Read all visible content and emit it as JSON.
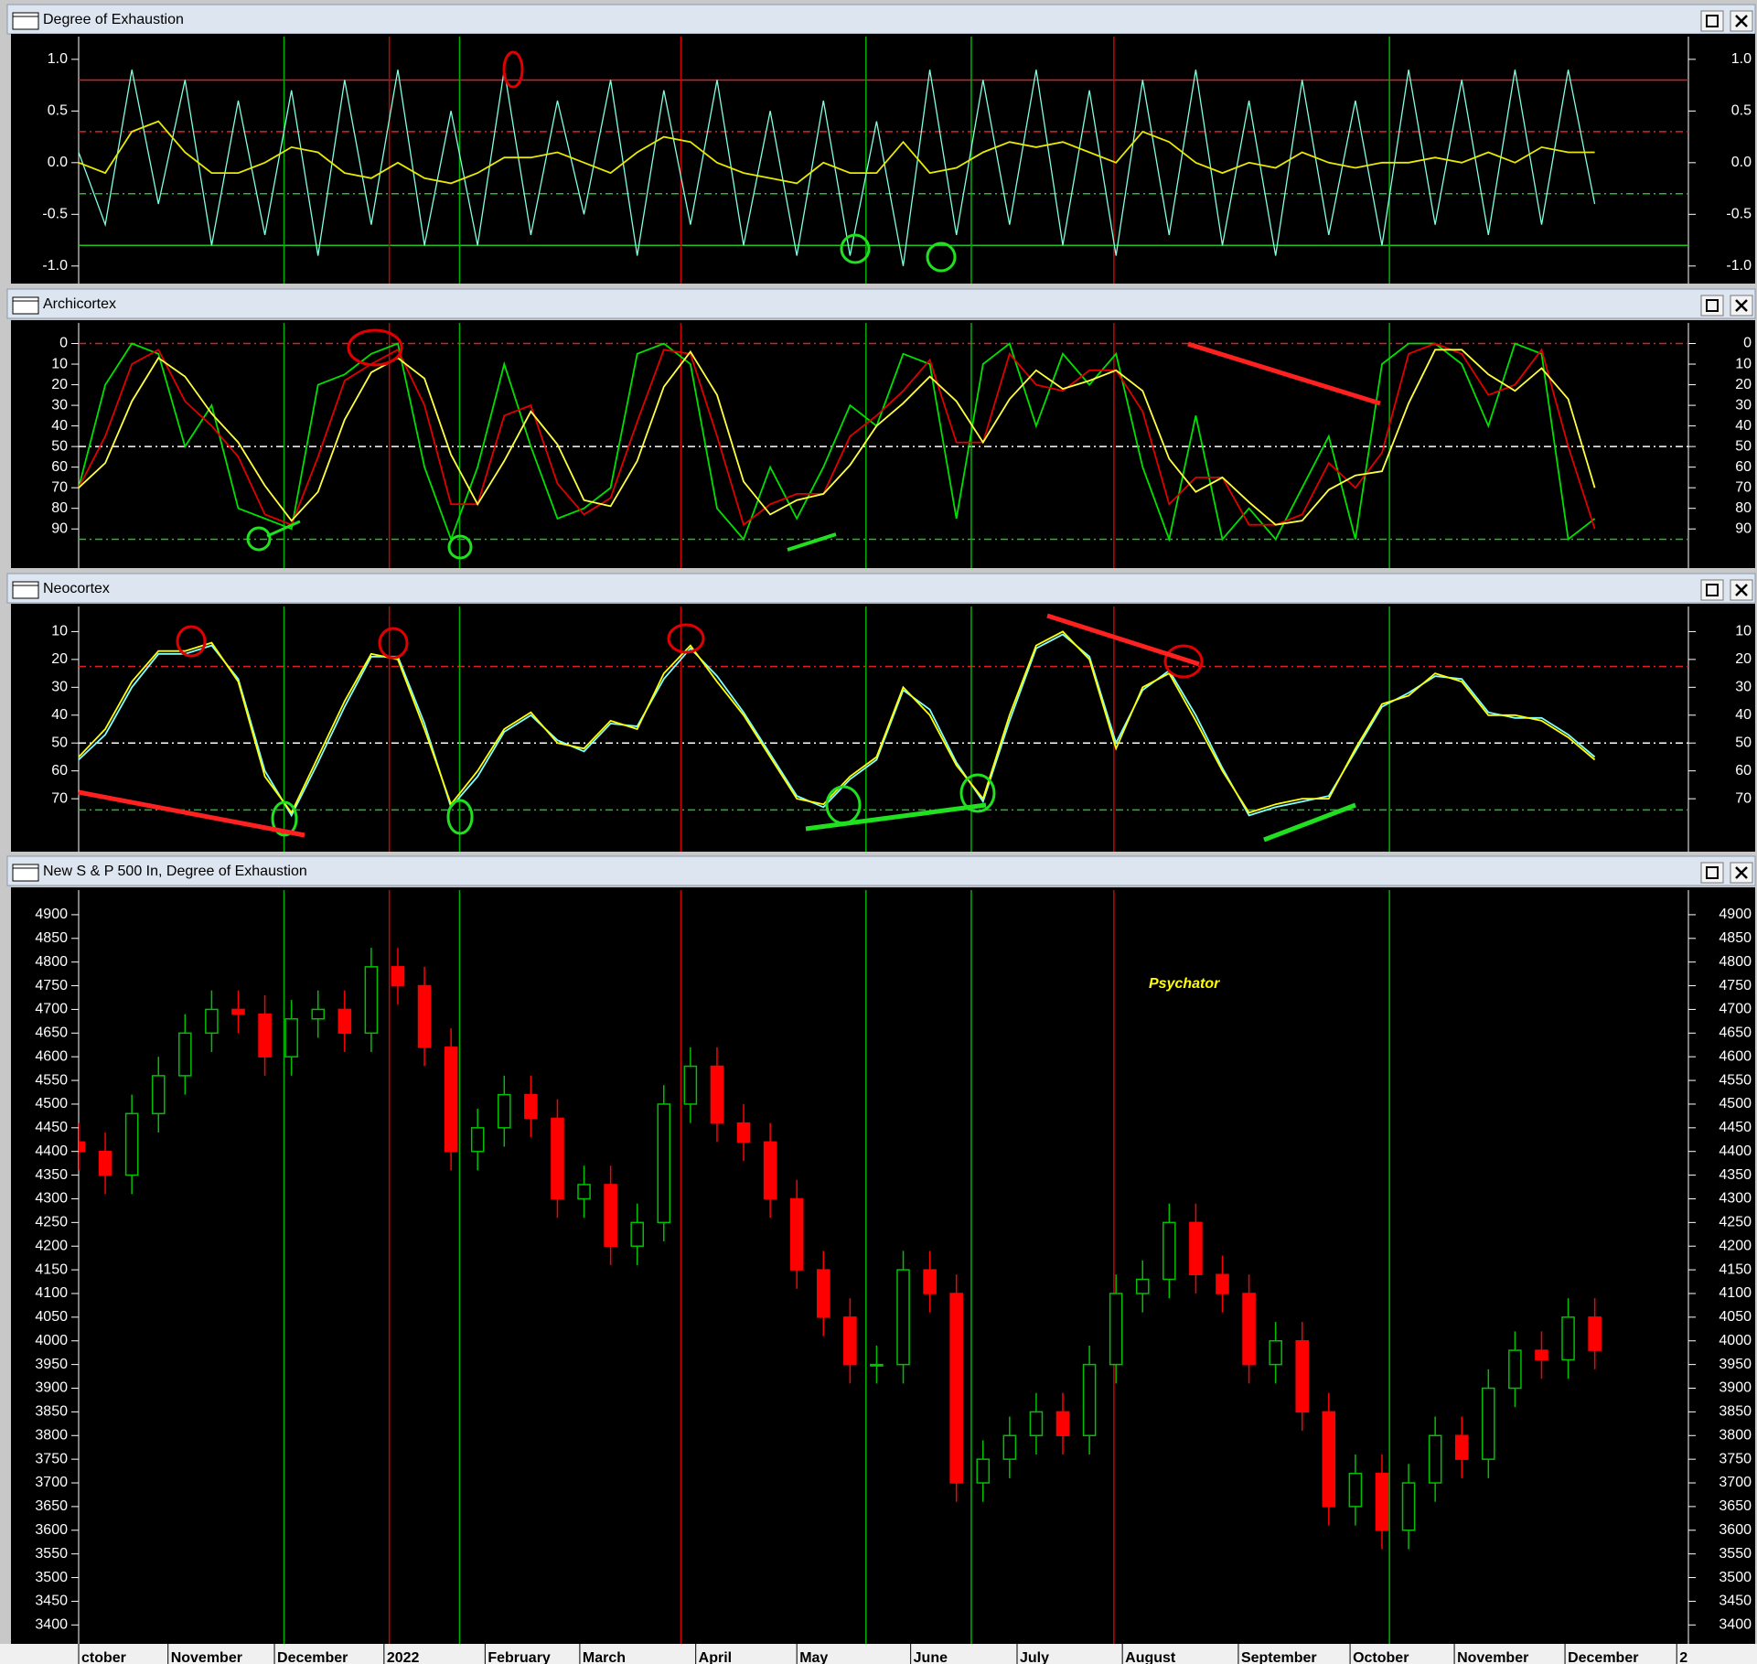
{
  "chart_data": [
    {
      "type": "line",
      "title": "Degree of Exhaustion",
      "x": [
        0,
        0.25,
        0.5,
        0.75,
        1,
        1.25,
        1.5,
        1.75,
        2,
        2.25,
        2.5,
        2.75,
        3,
        3.25,
        3.5,
        3.75,
        4,
        4.25,
        4.5,
        4.75,
        5,
        5.25,
        5.5,
        5.75,
        6,
        6.25,
        6.5,
        6.75,
        7,
        7.25,
        7.5,
        7.75,
        8,
        8.25,
        8.5,
        8.75,
        9,
        9.25,
        9.5,
        9.75,
        10,
        10.25,
        10.5,
        10.75,
        11,
        11.25,
        11.5,
        11.75,
        12,
        12.25,
        12.5,
        12.75,
        13,
        13.25,
        13.5,
        13.75,
        14,
        14.25
      ],
      "series": [
        {
          "color": "#80ffe0",
          "values": [
            0.1,
            -0.6,
            0.9,
            -0.4,
            0.8,
            -0.8,
            0.6,
            -0.7,
            0.7,
            -0.9,
            0.8,
            -0.6,
            0.9,
            -0.8,
            0.5,
            -0.8,
            0.9,
            -0.7,
            0.6,
            -0.5,
            0.8,
            -0.9,
            0.7,
            -0.6,
            0.8,
            -0.8,
            0.5,
            -0.9,
            0.6,
            -0.9,
            0.4,
            -1.0,
            0.9,
            -0.7,
            0.8,
            -0.6,
            0.9,
            -0.8,
            0.7,
            -0.9,
            0.8,
            -0.7,
            0.9,
            -0.8,
            0.6,
            -0.9,
            0.8,
            -0.7,
            0.6,
            -0.8,
            0.9,
            -0.6,
            0.8,
            -0.7,
            0.9,
            -0.6,
            0.9,
            -0.4
          ]
        },
        {
          "color": "#e8e800",
          "values": [
            0.0,
            -0.1,
            0.3,
            0.4,
            0.1,
            -0.1,
            -0.1,
            0.0,
            0.15,
            0.1,
            -0.1,
            -0.15,
            0.0,
            -0.15,
            -0.2,
            -0.1,
            0.05,
            0.05,
            0.1,
            0.0,
            -0.1,
            0.1,
            0.25,
            0.2,
            0.0,
            -0.1,
            -0.15,
            -0.2,
            0.0,
            -0.1,
            -0.1,
            0.2,
            -0.1,
            -0.05,
            0.1,
            0.2,
            0.15,
            0.2,
            0.1,
            0.0,
            0.3,
            0.2,
            0.0,
            -0.1,
            0.0,
            -0.05,
            0.1,
            0.0,
            -0.05,
            0.0,
            0.0,
            0.05,
            0.0,
            0.1,
            0.0,
            0.15,
            0.1,
            0.1
          ]
        }
      ],
      "xlim": [
        0,
        15.13
      ],
      "ylim": [
        -1.17,
        1.22
      ],
      "y_inverted": false,
      "yticks": [
        {
          "value": 1,
          "label": "1.0"
        },
        0.5,
        {
          "value": 0,
          "label": "0.0"
        },
        -0.5,
        {
          "value": -1,
          "label": "-1.0"
        }
      ],
      "hlines": [
        {
          "value": 0.8,
          "color": "#e02020",
          "dashed": false
        },
        {
          "value": 0.3,
          "color": "#e02020",
          "dashed": true
        },
        {
          "value": -0.3,
          "color": "#20c020",
          "dashed": true
        },
        {
          "value": -0.8,
          "color": "#20c020",
          "dashed": false
        }
      ]
    },
    {
      "type": "line",
      "title": "Archicortex",
      "x": [
        0,
        0.25,
        0.5,
        0.75,
        1,
        1.25,
        1.5,
        1.75,
        2,
        2.25,
        2.5,
        2.75,
        3,
        3.25,
        3.5,
        3.75,
        4,
        4.25,
        4.5,
        4.75,
        5,
        5.25,
        5.5,
        5.75,
        6,
        6.25,
        6.5,
        6.75,
        7,
        7.25,
        7.5,
        7.75,
        8,
        8.25,
        8.5,
        8.75,
        9,
        9.25,
        9.5,
        9.75,
        10,
        10.25,
        10.5,
        10.75,
        11,
        11.25,
        11.5,
        11.75,
        12,
        12.25,
        12.5,
        12.75,
        13,
        13.25,
        13.5,
        13.75,
        14,
        14.25
      ],
      "series": [
        {
          "color": "#00e000",
          "values": [
            70,
            20,
            0,
            5,
            50,
            30,
            80,
            85,
            90,
            20,
            15,
            5,
            0,
            60,
            95,
            60,
            10,
            50,
            85,
            80,
            70,
            5,
            0,
            10,
            80,
            95,
            60,
            85,
            60,
            30,
            40,
            5,
            10,
            85,
            10,
            0,
            40,
            5,
            20,
            5,
            60,
            95,
            35,
            95,
            80,
            95,
            70,
            45,
            95,
            10,
            0,
            0,
            10,
            40,
            0,
            5,
            95,
            85
          ]
        },
        {
          "color": "#e00000",
          "values": [
            70,
            45,
            10,
            3,
            28,
            40,
            55,
            83,
            88,
            55,
            18,
            10,
            3,
            30,
            78,
            78,
            35,
            30,
            68,
            83,
            75,
            38,
            3,
            5,
            45,
            88,
            78,
            73,
            73,
            45,
            35,
            23,
            8,
            48,
            48,
            5,
            20,
            23,
            13,
            13,
            33,
            78,
            65,
            65,
            88,
            88,
            83,
            58,
            70,
            53,
            5,
            0,
            5,
            25,
            20,
            3,
            50,
            90
          ]
        },
        {
          "color": "#ffff40",
          "values": [
            70,
            58,
            28,
            7,
            16,
            34,
            48,
            69,
            86,
            72,
            37,
            14,
            7,
            17,
            54,
            78,
            57,
            33,
            49,
            76,
            79,
            57,
            21,
            4,
            25,
            67,
            83,
            76,
            73,
            59,
            40,
            29,
            16,
            28,
            48,
            27,
            13,
            22,
            18,
            13,
            23,
            56,
            72,
            65,
            77,
            88,
            86,
            71,
            64,
            62,
            29,
            3,
            3,
            15,
            23,
            12,
            27,
            70
          ]
        }
      ],
      "xlim": [
        0,
        15.13
      ],
      "ylim": [
        -10,
        109
      ],
      "y_inverted": true,
      "yticks": [
        0,
        10,
        20,
        30,
        40,
        50,
        60,
        70,
        80,
        90
      ],
      "hlines": [
        {
          "value": 0,
          "color": "#e02020",
          "dashed": true
        },
        {
          "value": 50,
          "color": "#ffffff",
          "dashed": true
        },
        {
          "value": 95,
          "color": "#20c020",
          "dashed": true
        }
      ]
    },
    {
      "type": "line",
      "title": "Neocortex",
      "x": [
        0,
        0.25,
        0.5,
        0.75,
        1,
        1.25,
        1.5,
        1.75,
        2,
        2.25,
        2.5,
        2.75,
        3,
        3.25,
        3.5,
        3.75,
        4,
        4.25,
        4.5,
        4.75,
        5,
        5.25,
        5.5,
        5.75,
        6,
        6.25,
        6.5,
        6.75,
        7,
        7.25,
        7.5,
        7.75,
        8,
        8.25,
        8.5,
        8.75,
        9,
        9.25,
        9.5,
        9.75,
        10,
        10.25,
        10.5,
        10.75,
        11,
        11.25,
        11.5,
        11.75,
        12,
        12.25,
        12.5,
        12.75,
        13,
        13.25,
        13.5,
        13.75,
        14,
        14.25
      ],
      "series": [
        {
          "color": "#80ffff",
          "values": [
            56,
            47,
            30,
            18,
            18,
            15,
            27,
            60,
            76,
            57,
            37,
            19,
            19,
            43,
            73,
            62,
            46,
            40,
            49,
            53,
            43,
            44,
            27,
            16,
            26,
            39,
            54,
            69,
            73,
            63,
            56,
            31,
            38,
            57,
            71,
            42,
            16,
            11,
            19,
            50,
            31,
            24,
            40,
            59,
            76,
            73,
            71,
            69,
            53,
            37,
            32,
            26,
            27,
            39,
            41,
            41,
            47,
            55
          ]
        },
        {
          "color": "#ffff00",
          "values": [
            55,
            45,
            28,
            17,
            17,
            14,
            28,
            62,
            75,
            55,
            35,
            18,
            20,
            45,
            72,
            60,
            45,
            39,
            50,
            52,
            42,
            45,
            25,
            15,
            28,
            40,
            55,
            70,
            72,
            62,
            55,
            30,
            40,
            58,
            70,
            40,
            15,
            10,
            20,
            52,
            30,
            25,
            42,
            60,
            75,
            72,
            70,
            70,
            52,
            36,
            33,
            25,
            28,
            40,
            40,
            42,
            48,
            56
          ]
        }
      ],
      "xlim": [
        0,
        15.13
      ],
      "ylim": [
        1,
        89
      ],
      "y_inverted": true,
      "yticks": [
        10,
        20,
        30,
        40,
        50,
        60,
        70
      ],
      "hlines": [
        {
          "value": 22.5,
          "color": "#e02020",
          "dashed": true
        },
        {
          "value": 50,
          "color": "#ffffff",
          "dashed": true
        },
        {
          "value": 74,
          "color": "#20c020",
          "dashed": true
        }
      ]
    },
    {
      "type": "candlestick",
      "title": "New S & P 500 In, Degree of Exhaustion",
      "annotation": "Psychator",
      "x": [
        0,
        0.25,
        0.5,
        0.75,
        1,
        1.25,
        1.5,
        1.75,
        2,
        2.25,
        2.5,
        2.75,
        3,
        3.25,
        3.5,
        3.75,
        4,
        4.25,
        4.5,
        4.75,
        5,
        5.25,
        5.5,
        5.75,
        6,
        6.25,
        6.5,
        6.75,
        7,
        7.25,
        7.5,
        7.75,
        8,
        8.25,
        8.5,
        8.75,
        9,
        9.25,
        9.5,
        9.75,
        10,
        10.25,
        10.5,
        10.75,
        11,
        11.25,
        11.5,
        11.75,
        12,
        12.25,
        12.5,
        12.75,
        13,
        13.25,
        13.5,
        13.75,
        14,
        14.25
      ],
      "open": [
        4420,
        4400,
        4350,
        4480,
        4560,
        4650,
        4700,
        4690,
        4600,
        4680,
        4700,
        4650,
        4790,
        4750,
        4620,
        4400,
        4450,
        4520,
        4470,
        4300,
        4330,
        4200,
        4250,
        4500,
        4580,
        4460,
        4420,
        4300,
        4150,
        4050,
        3950,
        3950,
        4150,
        4100,
        3700,
        3750,
        3800,
        3850,
        3800,
        3950,
        4100,
        4130,
        4250,
        4140,
        4100,
        3950,
        4000,
        3850,
        3650,
        3720,
        3600,
        3700,
        3800,
        3750,
        3900,
        3980,
        3960,
        4050
      ],
      "high": [
        4460,
        4440,
        4520,
        4600,
        4690,
        4740,
        4740,
        4730,
        4720,
        4740,
        4740,
        4830,
        4830,
        4790,
        4660,
        4490,
        4560,
        4560,
        4510,
        4370,
        4370,
        4290,
        4540,
        4620,
        4620,
        4500,
        4460,
        4340,
        4190,
        4090,
        3990,
        4190,
        4190,
        4140,
        3790,
        3840,
        3890,
        3890,
        3990,
        4140,
        4170,
        4290,
        4290,
        4180,
        4140,
        4040,
        4040,
        3890,
        3760,
        3760,
        3740,
        3840,
        3840,
        3940,
        4020,
        4020,
        4090,
        4090
      ],
      "low": [
        4360,
        4310,
        4310,
        4440,
        4520,
        4610,
        4650,
        4560,
        4560,
        4640,
        4610,
        4610,
        4710,
        4580,
        4360,
        4360,
        4410,
        4430,
        4260,
        4260,
        4160,
        4160,
        4210,
        4460,
        4420,
        4380,
        4260,
        4110,
        4010,
        3910,
        3910,
        3910,
        4060,
        3660,
        3660,
        3710,
        3760,
        3760,
        3760,
        3910,
        4060,
        4090,
        4100,
        4060,
        3910,
        3910,
        3810,
        3610,
        3610,
        3560,
        3560,
        3660,
        3710,
        3710,
        3860,
        3920,
        3920,
        3940
      ],
      "close": [
        4400,
        4350,
        4480,
        4560,
        4650,
        4700,
        4690,
        4600,
        4680,
        4700,
        4650,
        4790,
        4750,
        4620,
        4400,
        4450,
        4520,
        4470,
        4300,
        4330,
        4200,
        4250,
        4500,
        4580,
        4460,
        4420,
        4300,
        4150,
        4050,
        3950,
        3950,
        4150,
        4100,
        3700,
        3750,
        3800,
        3850,
        3800,
        3950,
        4100,
        4130,
        4250,
        4140,
        4100,
        3950,
        4000,
        3850,
        3650,
        3720,
        3600,
        3700,
        3800,
        3750,
        3900,
        3980,
        3960,
        4050,
        3980
      ],
      "up_color": "#00c000",
      "down_color": "#ff0000",
      "xlim": [
        0,
        15.13
      ],
      "ylim": [
        3360,
        4952
      ],
      "y_inverted": false,
      "yticks": [
        3400,
        3450,
        3500,
        3550,
        3600,
        3650,
        3700,
        3750,
        3800,
        3850,
        3900,
        3950,
        4000,
        4050,
        4100,
        4150,
        4200,
        4250,
        4300,
        4350,
        4400,
        4450,
        4500,
        4550,
        4600,
        4650,
        4700,
        4750,
        4800,
        4850,
        4900
      ],
      "xticks": [
        {
          "value": 0,
          "label": "ctober"
        },
        {
          "value": 0.84,
          "label": "November"
        },
        {
          "value": 1.84,
          "label": "December"
        },
        {
          "value": 2.87,
          "label": "2022"
        },
        {
          "value": 3.82,
          "label": "February"
        },
        {
          "value": 4.71,
          "label": "March"
        },
        {
          "value": 5.8,
          "label": "April"
        },
        {
          "value": 6.75,
          "label": "May"
        },
        {
          "value": 7.82,
          "label": "June"
        },
        {
          "value": 8.82,
          "label": "July"
        },
        {
          "value": 9.81,
          "label": "August"
        },
        {
          "value": 10.9,
          "label": "September"
        },
        {
          "value": 11.95,
          "label": "October"
        },
        {
          "value": 12.93,
          "label": "November"
        },
        {
          "value": 13.97,
          "label": "December"
        },
        {
          "value": 15.02,
          "label": "2"
        }
      ]
    }
  ],
  "vlines": [
    {
      "value": 1.93,
      "color": "#00b000"
    },
    {
      "value": 2.92,
      "color": "#d00000"
    },
    {
      "value": 3.58,
      "color": "#00b000"
    },
    {
      "value": 5.66,
      "color": "#d00000"
    },
    {
      "value": 7.4,
      "color": "#00b000"
    },
    {
      "value": 8.39,
      "color": "#00b000"
    },
    {
      "value": 9.73,
      "color": "#d00000"
    },
    {
      "value": 12.32,
      "color": "#00b000"
    }
  ]
}
